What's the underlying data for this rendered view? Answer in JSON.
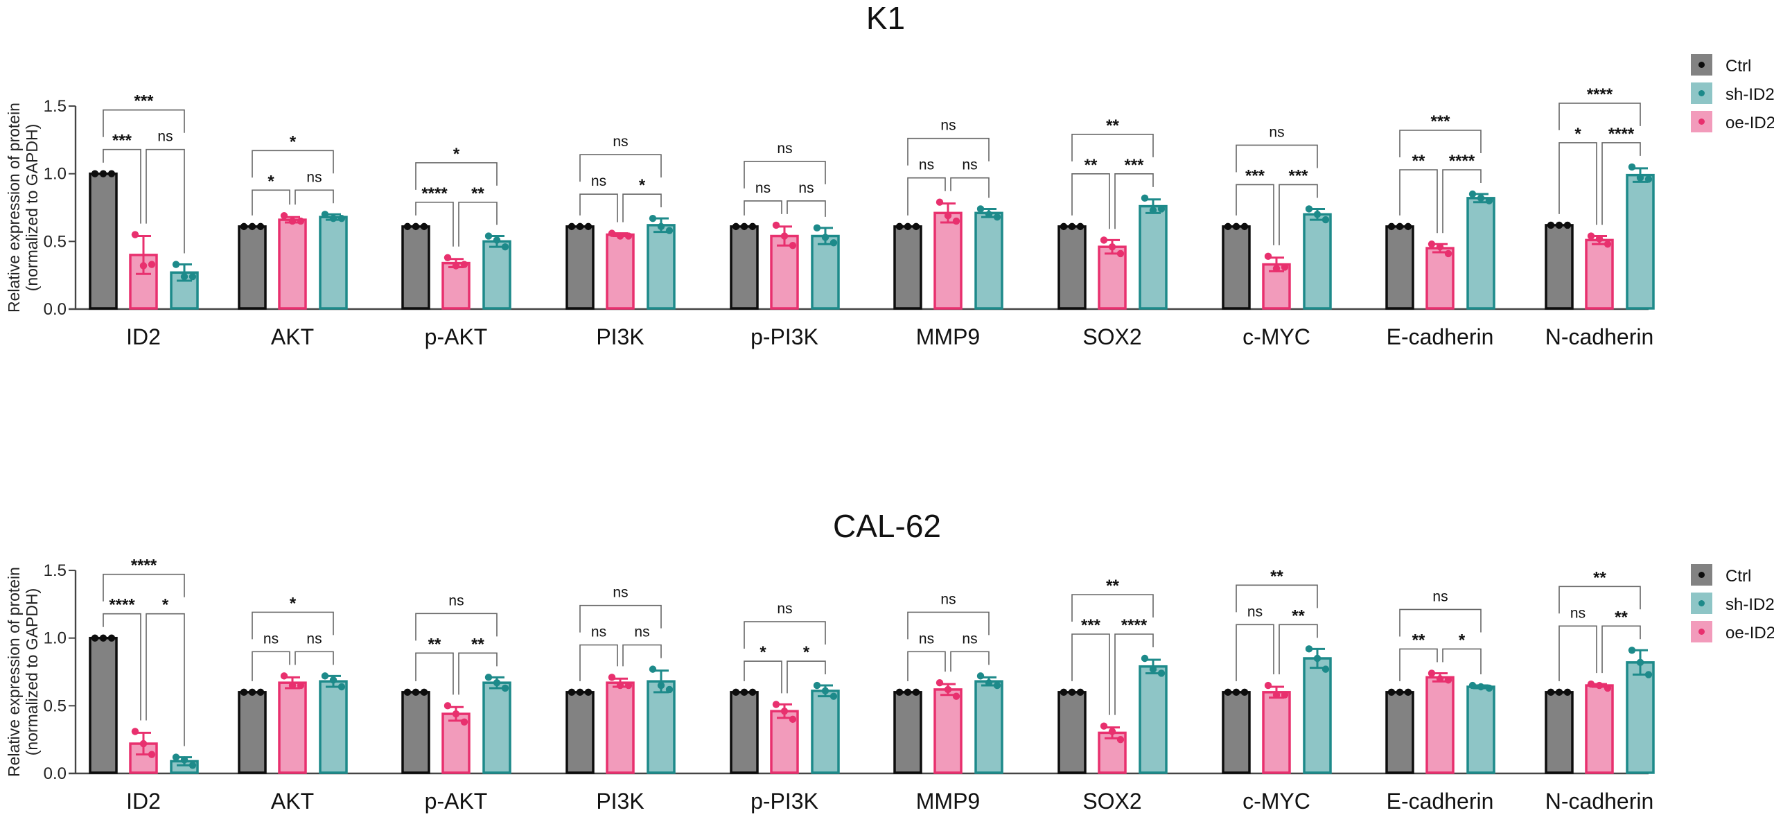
{
  "chart_data": [
    {
      "type": "bar",
      "title": "K1",
      "xlabel": "",
      "ylabel": "Relative expression of protein\n(normalized to GAPDH)",
      "ylabel_lines": [
        "Relative expression of protein",
        "(normalized to GAPDH)"
      ],
      "ylim": [
        0,
        1.5
      ],
      "yticks": [
        0.0,
        0.5,
        1.0,
        1.5
      ],
      "ytick_labels": [
        "0.0",
        "0.5",
        "1.0",
        "1.5"
      ],
      "grid": false,
      "legend_position": "top-right",
      "error_bars": "SD",
      "categories": [
        "ID2",
        "AKT",
        "p-AKT",
        "PI3K",
        "p-PI3K",
        "MMP9",
        "SOX2",
        "c-MYC",
        "E-cadherin",
        "N-cadherin"
      ],
      "series": [
        {
          "name": "Ctrl",
          "key": "ctrl",
          "values": [
            1.0,
            0.61,
            0.61,
            0.61,
            0.61,
            0.61,
            0.61,
            0.61,
            0.61,
            0.62
          ],
          "sd": [
            0,
            0,
            0,
            0,
            0,
            0,
            0,
            0,
            0,
            0
          ],
          "points": [
            [
              1.0,
              1.0,
              1.0
            ],
            [
              0.61,
              0.61,
              0.61
            ],
            [
              0.61,
              0.61,
              0.61
            ],
            [
              0.61,
              0.61,
              0.61
            ],
            [
              0.61,
              0.61,
              0.61
            ],
            [
              0.61,
              0.61,
              0.61
            ],
            [
              0.61,
              0.61,
              0.61
            ],
            [
              0.61,
              0.61,
              0.61
            ],
            [
              0.61,
              0.61,
              0.61
            ],
            [
              0.62,
              0.62,
              0.62
            ]
          ]
        },
        {
          "name": "oe-ID2",
          "key": "oe",
          "values": [
            0.4,
            0.66,
            0.34,
            0.55,
            0.54,
            0.71,
            0.46,
            0.33,
            0.45,
            0.51
          ],
          "sd": [
            0.14,
            0.02,
            0.03,
            0.01,
            0.07,
            0.07,
            0.05,
            0.05,
            0.03,
            0.03
          ],
          "points": [
            [
              0.55,
              0.32,
              0.33
            ],
            [
              0.69,
              0.65,
              0.65
            ],
            [
              0.38,
              0.32,
              0.33
            ],
            [
              0.56,
              0.54,
              0.54
            ],
            [
              0.62,
              0.54,
              0.47
            ],
            [
              0.79,
              0.69,
              0.65
            ],
            [
              0.51,
              0.46,
              0.41
            ],
            [
              0.39,
              0.3,
              0.31
            ],
            [
              0.48,
              0.46,
              0.41
            ],
            [
              0.54,
              0.52,
              0.48
            ]
          ]
        },
        {
          "name": "sh-ID2",
          "key": "sh",
          "values": [
            0.27,
            0.68,
            0.5,
            0.62,
            0.54,
            0.71,
            0.76,
            0.7,
            0.82,
            0.99
          ],
          "sd": [
            0.06,
            0.02,
            0.04,
            0.05,
            0.06,
            0.03,
            0.05,
            0.04,
            0.03,
            0.05
          ],
          "points": [
            [
              0.33,
              0.24,
              0.24
            ],
            [
              0.7,
              0.67,
              0.67
            ],
            [
              0.54,
              0.51,
              0.46
            ],
            [
              0.67,
              0.61,
              0.58
            ],
            [
              0.6,
              0.53,
              0.49
            ],
            [
              0.74,
              0.7,
              0.68
            ],
            [
              0.82,
              0.73,
              0.74
            ],
            [
              0.74,
              0.7,
              0.66
            ],
            [
              0.85,
              0.82,
              0.8
            ],
            [
              1.05,
              0.97,
              0.96
            ]
          ]
        }
      ],
      "significance": [
        {
          "ctrl_vs_oe": "***",
          "oe_vs_sh": "ns",
          "ctrl_vs_sh": "***"
        },
        {
          "ctrl_vs_oe": "*",
          "oe_vs_sh": "ns",
          "ctrl_vs_sh": "*"
        },
        {
          "ctrl_vs_oe": "****",
          "oe_vs_sh": "**",
          "ctrl_vs_sh": "*"
        },
        {
          "ctrl_vs_oe": "ns",
          "oe_vs_sh": "*",
          "ctrl_vs_sh": "ns"
        },
        {
          "ctrl_vs_oe": "ns",
          "oe_vs_sh": "ns",
          "ctrl_vs_sh": "ns"
        },
        {
          "ctrl_vs_oe": "ns",
          "oe_vs_sh": "ns",
          "ctrl_vs_sh": "ns"
        },
        {
          "ctrl_vs_oe": "**",
          "oe_vs_sh": "***",
          "ctrl_vs_sh": "**"
        },
        {
          "ctrl_vs_oe": "***",
          "oe_vs_sh": "***",
          "ctrl_vs_sh": "ns"
        },
        {
          "ctrl_vs_oe": "**",
          "oe_vs_sh": "****",
          "ctrl_vs_sh": "***"
        },
        {
          "ctrl_vs_oe": "*",
          "oe_vs_sh": "****",
          "ctrl_vs_sh": "****"
        }
      ]
    },
    {
      "type": "bar",
      "title": "CAL-62",
      "xlabel": "",
      "ylabel": "Relative expression of protein\n(normalized to GAPDH)",
      "ylabel_lines": [
        "Relative expression of protein",
        "(normalized to GAPDH)"
      ],
      "ylim": [
        0,
        1.5
      ],
      "yticks": [
        0.0,
        0.5,
        1.0,
        1.5
      ],
      "ytick_labels": [
        "0.0",
        "0.5",
        "1.0",
        "1.5"
      ],
      "grid": false,
      "legend_position": "top-right",
      "error_bars": "SD",
      "categories": [
        "ID2",
        "AKT",
        "p-AKT",
        "PI3K",
        "p-PI3K",
        "MMP9",
        "SOX2",
        "c-MYC",
        "E-cadherin",
        "N-cadherin"
      ],
      "series": [
        {
          "name": "Ctrl",
          "key": "ctrl",
          "values": [
            1.0,
            0.6,
            0.6,
            0.6,
            0.6,
            0.6,
            0.6,
            0.6,
            0.6,
            0.6
          ],
          "sd": [
            0,
            0,
            0,
            0,
            0,
            0,
            0,
            0,
            0,
            0
          ],
          "points": [
            [
              1.0,
              1.0,
              1.0
            ],
            [
              0.6,
              0.6,
              0.6
            ],
            [
              0.6,
              0.6,
              0.6
            ],
            [
              0.6,
              0.6,
              0.6
            ],
            [
              0.6,
              0.6,
              0.6
            ],
            [
              0.6,
              0.6,
              0.6
            ],
            [
              0.6,
              0.6,
              0.6
            ],
            [
              0.6,
              0.6,
              0.6
            ],
            [
              0.6,
              0.6,
              0.6
            ],
            [
              0.6,
              0.6,
              0.6
            ]
          ]
        },
        {
          "name": "oe-ID2",
          "key": "oe",
          "values": [
            0.22,
            0.67,
            0.44,
            0.67,
            0.46,
            0.62,
            0.3,
            0.6,
            0.71,
            0.65
          ],
          "sd": [
            0.08,
            0.04,
            0.05,
            0.03,
            0.05,
            0.04,
            0.04,
            0.04,
            0.03,
            0.01
          ],
          "points": [
            [
              0.31,
              0.22,
              0.14
            ],
            [
              0.72,
              0.65,
              0.65
            ],
            [
              0.5,
              0.44,
              0.38
            ],
            [
              0.71,
              0.65,
              0.65
            ],
            [
              0.51,
              0.46,
              0.4
            ],
            [
              0.67,
              0.62,
              0.57
            ],
            [
              0.35,
              0.31,
              0.25
            ],
            [
              0.65,
              0.58,
              0.58
            ],
            [
              0.74,
              0.7,
              0.69
            ],
            [
              0.66,
              0.65,
              0.63
            ]
          ]
        },
        {
          "name": "sh-ID2",
          "key": "sh",
          "values": [
            0.09,
            0.68,
            0.67,
            0.68,
            0.61,
            0.68,
            0.79,
            0.85,
            0.64,
            0.82
          ],
          "sd": [
            0.03,
            0.04,
            0.04,
            0.08,
            0.04,
            0.03,
            0.05,
            0.07,
            0.01,
            0.09
          ],
          "points": [
            [
              0.12,
              0.1,
              0.06
            ],
            [
              0.72,
              0.69,
              0.64
            ],
            [
              0.71,
              0.67,
              0.63
            ],
            [
              0.77,
              0.65,
              0.62
            ],
            [
              0.65,
              0.61,
              0.57
            ],
            [
              0.72,
              0.67,
              0.65
            ],
            [
              0.85,
              0.77,
              0.74
            ],
            [
              0.92,
              0.85,
              0.77
            ],
            [
              0.65,
              0.64,
              0.63
            ],
            [
              0.91,
              0.82,
              0.73
            ]
          ]
        }
      ],
      "significance": [
        {
          "ctrl_vs_oe": "****",
          "oe_vs_sh": "*",
          "ctrl_vs_sh": "****"
        },
        {
          "ctrl_vs_oe": "ns",
          "oe_vs_sh": "ns",
          "ctrl_vs_sh": "*"
        },
        {
          "ctrl_vs_oe": "**",
          "oe_vs_sh": "**",
          "ctrl_vs_sh": "ns"
        },
        {
          "ctrl_vs_oe": "ns",
          "oe_vs_sh": "ns",
          "ctrl_vs_sh": "ns"
        },
        {
          "ctrl_vs_oe": "*",
          "oe_vs_sh": "*",
          "ctrl_vs_sh": "ns"
        },
        {
          "ctrl_vs_oe": "ns",
          "oe_vs_sh": "ns",
          "ctrl_vs_sh": "ns"
        },
        {
          "ctrl_vs_oe": "***",
          "oe_vs_sh": "****",
          "ctrl_vs_sh": "**"
        },
        {
          "ctrl_vs_oe": "ns",
          "oe_vs_sh": "**",
          "ctrl_vs_sh": "**"
        },
        {
          "ctrl_vs_oe": "**",
          "oe_vs_sh": "*",
          "ctrl_vs_sh": "ns"
        },
        {
          "ctrl_vs_oe": "ns",
          "oe_vs_sh": "**",
          "ctrl_vs_sh": "**"
        }
      ]
    }
  ],
  "legend": {
    "items": [
      {
        "label": "Ctrl",
        "key": "ctrl"
      },
      {
        "label": "sh-ID2",
        "key": "sh"
      },
      {
        "label": "oe-ID2",
        "key": "oe"
      }
    ]
  },
  "colors": {
    "ctrl": {
      "fill": "#828282",
      "stroke": "#0d0d0d",
      "dot": "#0d0d0d"
    },
    "oe": {
      "fill": "#f29bbb",
      "stroke": "#e8306e",
      "dot": "#e8306e"
    },
    "sh": {
      "fill": "#8ec5c6",
      "stroke": "#1d8a8a",
      "dot": "#1d8a8a"
    }
  }
}
